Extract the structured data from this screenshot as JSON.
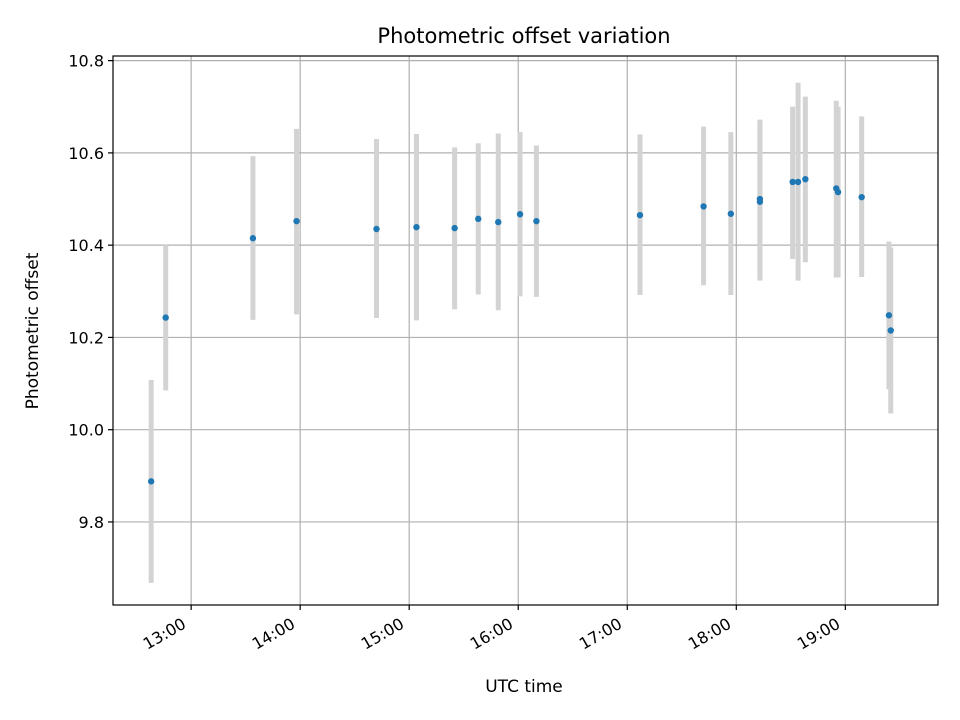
{
  "chart_data": {
    "type": "scatter",
    "title": "Photometric offset variation",
    "xlabel": "UTC time",
    "ylabel": "Photometric offset",
    "x_unit": "hours (UTC)",
    "xlim": [
      "12:17",
      "19:51"
    ],
    "ylim": [
      9.62,
      10.81
    ],
    "x_ticks": [
      "13:00",
      "14:00",
      "15:00",
      "16:00",
      "17:00",
      "18:00",
      "19:00"
    ],
    "y_ticks": [
      "9.8",
      "10.0",
      "10.2",
      "10.4",
      "10.6",
      "10.8"
    ],
    "grid": true,
    "marker_color": "#1f77b4",
    "errorbar_color": "#d3d3d3",
    "series": [
      {
        "points": [
          {
            "t": "12:38",
            "y": 9.888,
            "lo": 9.668,
            "hi": 10.108
          },
          {
            "t": "12:46",
            "y": 10.243,
            "lo": 10.085,
            "hi": 10.4
          },
          {
            "t": "13:34",
            "y": 10.415,
            "lo": 10.238,
            "hi": 10.593
          },
          {
            "t": "13:58",
            "y": 10.452,
            "lo": 10.25,
            "hi": 10.652
          },
          {
            "t": "14:42",
            "y": 10.435,
            "lo": 10.242,
            "hi": 10.63
          },
          {
            "t": "15:04",
            "y": 10.439,
            "lo": 10.237,
            "hi": 10.641
          },
          {
            "t": "15:25",
            "y": 10.437,
            "lo": 10.261,
            "hi": 10.612
          },
          {
            "t": "15:38",
            "y": 10.457,
            "lo": 10.293,
            "hi": 10.621
          },
          {
            "t": "15:49",
            "y": 10.45,
            "lo": 10.259,
            "hi": 10.642
          },
          {
            "t": "16:01",
            "y": 10.467,
            "lo": 10.289,
            "hi": 10.645
          },
          {
            "t": "16:10",
            "y": 10.452,
            "lo": 10.288,
            "hi": 10.616
          },
          {
            "t": "17:07",
            "y": 10.465,
            "lo": 10.292,
            "hi": 10.64
          },
          {
            "t": "17:42",
            "y": 10.484,
            "lo": 10.313,
            "hi": 10.657
          },
          {
            "t": "17:57",
            "y": 10.468,
            "lo": 10.292,
            "hi": 10.645
          },
          {
            "t": "18:13",
            "y": 10.494,
            "lo": 10.323,
            "hi": 10.665
          },
          {
            "t": "18:13",
            "y": 10.5,
            "lo": 10.33,
            "hi": 10.672
          },
          {
            "t": "18:31",
            "y": 10.537,
            "lo": 10.37,
            "hi": 10.7
          },
          {
            "t": "18:34",
            "y": 10.537,
            "lo": 10.323,
            "hi": 10.752
          },
          {
            "t": "18:38",
            "y": 10.543,
            "lo": 10.363,
            "hi": 10.722
          },
          {
            "t": "18:55",
            "y": 10.523,
            "lo": 10.33,
            "hi": 10.713
          },
          {
            "t": "18:56",
            "y": 10.515,
            "lo": 10.33,
            "hi": 10.7
          },
          {
            "t": "19:09",
            "y": 10.504,
            "lo": 10.331,
            "hi": 10.679
          },
          {
            "t": "19:24",
            "y": 10.248,
            "lo": 10.088,
            "hi": 10.408
          },
          {
            "t": "19:25",
            "y": 10.215,
            "lo": 10.035,
            "hi": 10.395
          }
        ]
      }
    ]
  }
}
